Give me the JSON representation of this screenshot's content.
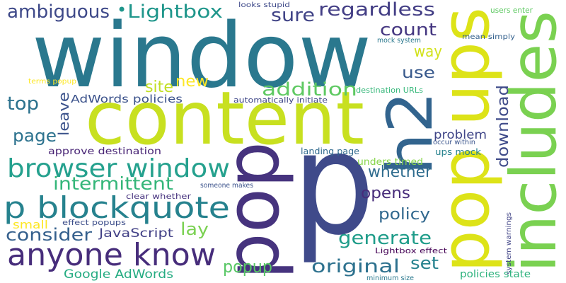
{
  "words": [
    "window",
    "content",
    "p",
    "pop",
    "pop ups",
    "includes",
    "h2",
    "browser window",
    "p blockquote",
    "anyone know",
    "ambiguous",
    "Lightbox",
    "regardless",
    "sure",
    "count",
    "way",
    "use",
    "new",
    "site",
    "addition",
    "AdWords policies",
    "top",
    "leave",
    "page",
    "download",
    "problem",
    "whether",
    "intermittent",
    "opens",
    "policy",
    "consider",
    "lay",
    "JavaScript",
    "generate",
    "popup",
    "original",
    "set",
    "Google AdWords",
    "small",
    "approve destination",
    "landing page",
    "unders timed",
    "occur within",
    "ups mock",
    "system warnings",
    "policies state",
    "Lightbox effect",
    "minimum size",
    "clear whether",
    "effect popups",
    "someone makes",
    "terms popup",
    "automatically initiate",
    "destination URLs",
    "looks stupid",
    "users enter",
    "mean simply",
    "mock system",
    "•"
  ]
}
